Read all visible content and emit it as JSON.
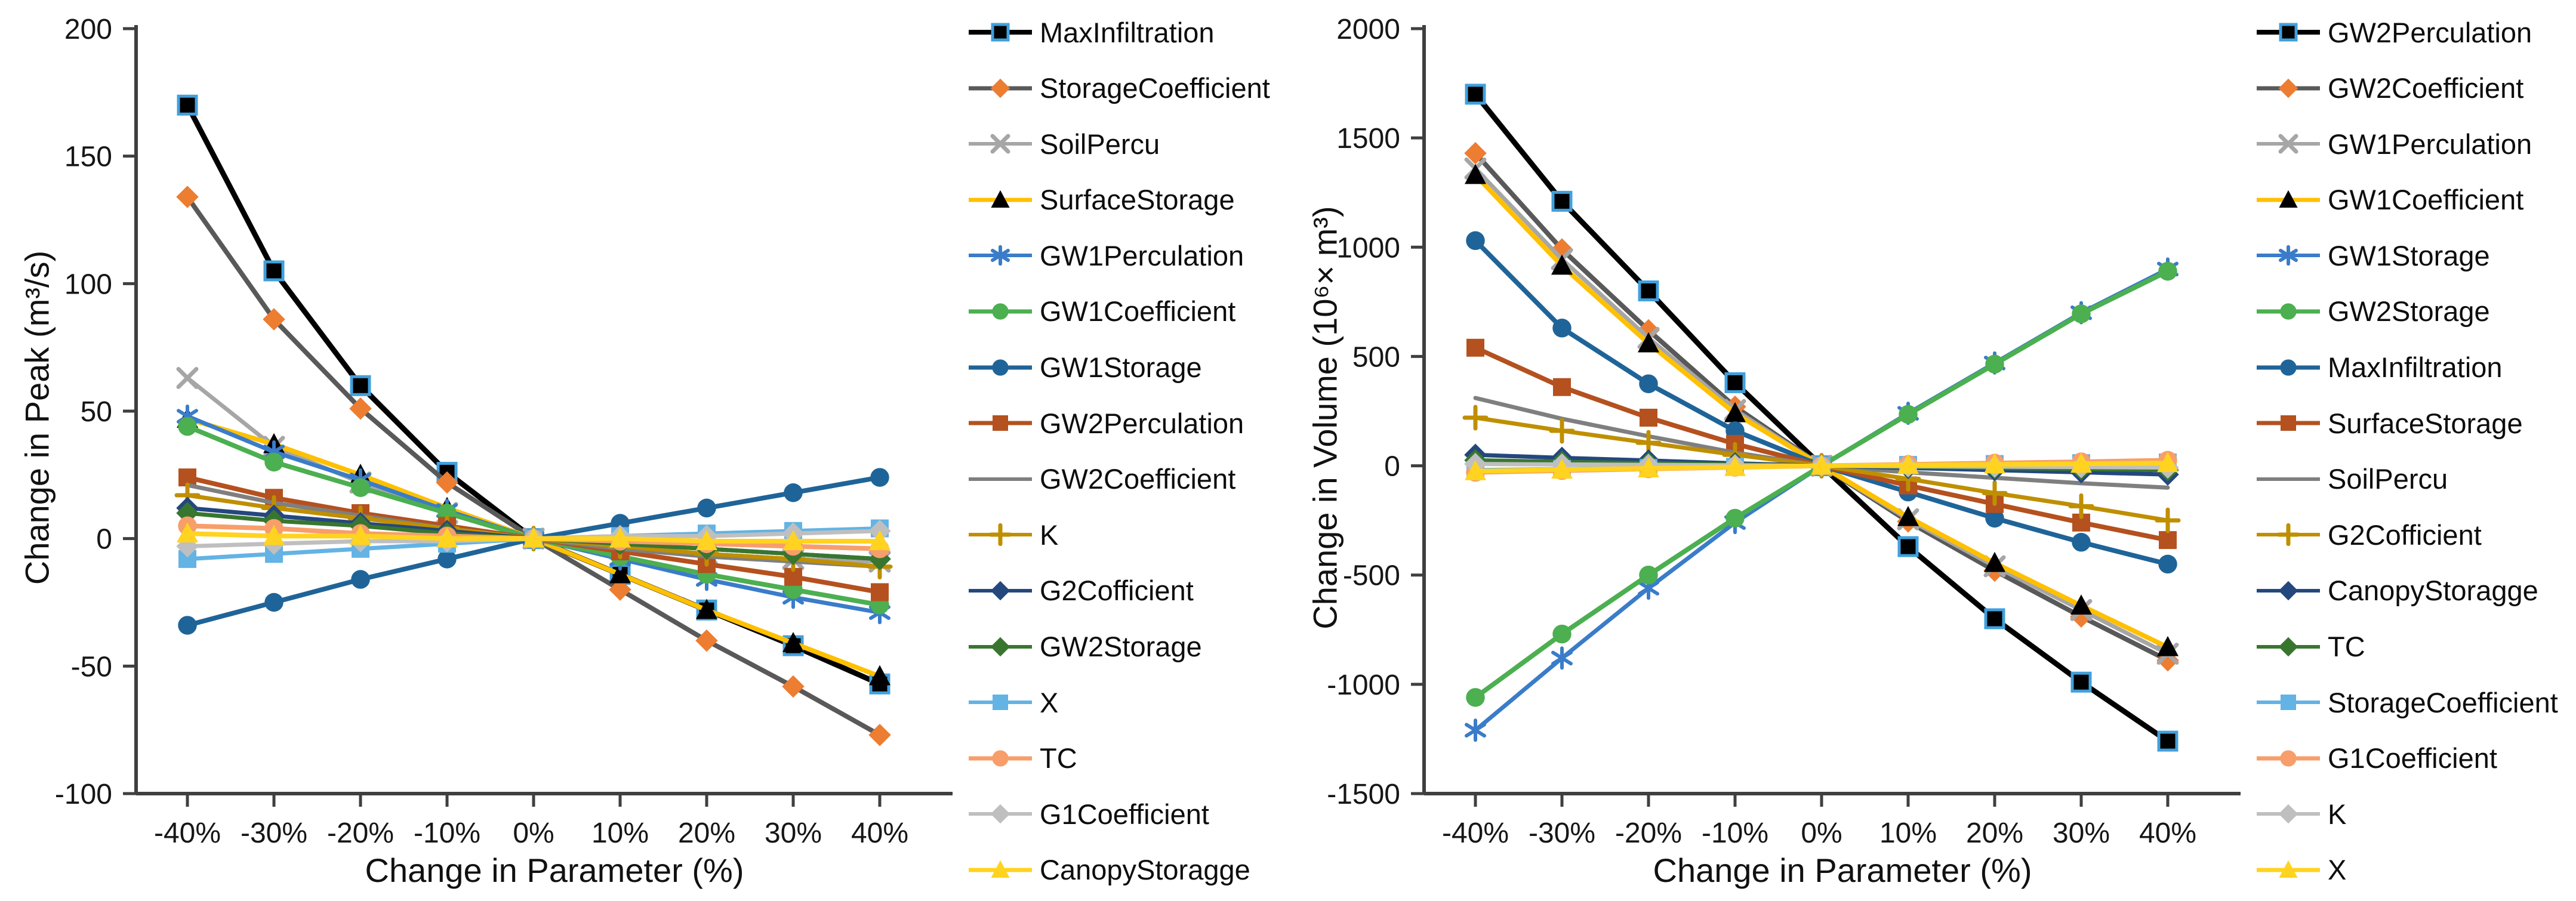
{
  "figure_title": "",
  "x_axis": {
    "title": "Change in Parameter (%)",
    "categories": [
      "-40%",
      "-30%",
      "-20%",
      "-10%",
      "0%",
      "10%",
      "20%",
      "30%",
      "40%"
    ]
  },
  "chart_data": [
    {
      "type": "line",
      "title": "",
      "xlabel": "Change in Parameter (%)",
      "ylabel": "Change in Peak (m³/s)",
      "ylim": [
        -100,
        200
      ],
      "ytick_step": 50,
      "ytick_labels": [
        "200",
        "150",
        "100",
        "50",
        "0",
        "-50",
        "-100"
      ],
      "grid": false,
      "legend_position": "right",
      "categories": [
        "-40%",
        "-30%",
        "-20%",
        "-10%",
        "0%",
        "10%",
        "20%",
        "30%",
        "40%"
      ],
      "series": [
        {
          "name": "MaxInfiltration",
          "color": "#000000",
          "marker": "square",
          "marker_color": "#000000",
          "marker_edge": "#41A0DC",
          "width": 9,
          "values": [
            170,
            105,
            60,
            26,
            0,
            -14,
            -28,
            -42,
            -57
          ]
        },
        {
          "name": "StorageCoefficient",
          "color": "#595959",
          "marker": "diamond",
          "marker_color": "#ED7D31",
          "marker_edge": "none",
          "width": 8,
          "values": [
            134,
            86,
            51,
            22,
            0,
            -20,
            -40,
            -58,
            -77
          ]
        },
        {
          "name": "SoilPercu",
          "color": "#A6A6A6",
          "marker": "x",
          "marker_color": "#A6A6A6",
          "marker_edge": "none",
          "width": 7,
          "values": [
            63,
            36,
            22,
            10,
            0,
            -4,
            -6,
            -8,
            -9
          ]
        },
        {
          "name": "SurfaceStorage",
          "color": "#FFC000",
          "marker": "triangle",
          "marker_color": "#000000",
          "marker_edge": "none",
          "width": 8,
          "values": [
            47,
            37,
            25,
            12,
            0,
            -14,
            -28,
            -41,
            -54
          ]
        },
        {
          "name": "GW1Perculation",
          "color": "#3A7CC9",
          "marker": "asterisk",
          "marker_color": "#3A7CC9",
          "marker_edge": "none",
          "width": 7,
          "values": [
            48,
            34,
            23,
            11,
            0,
            -8,
            -16,
            -23,
            -29
          ]
        },
        {
          "name": "GW1Coefficient",
          "color": "#4CAF50",
          "marker": "circle",
          "marker_color": "#4CAF50",
          "marker_edge": "none",
          "width": 8,
          "values": [
            44,
            30,
            20,
            10,
            0,
            -7,
            -14,
            -20,
            -26
          ]
        },
        {
          "name": "GW1Storage",
          "color": "#1F6498",
          "marker": "circle",
          "marker_color": "#1F6498",
          "marker_edge": "none",
          "width": 8,
          "values": [
            -34,
            -25,
            -16,
            -8,
            0,
            6,
            12,
            18,
            24
          ]
        },
        {
          "name": "GW2Perculation",
          "color": "#B4511F",
          "marker": "square",
          "marker_color": "#B4511F",
          "marker_edge": "none",
          "width": 8,
          "values": [
            24,
            16,
            10,
            5,
            0,
            -5,
            -10,
            -15,
            -21
          ]
        },
        {
          "name": "GW2Coefficient",
          "color": "#7F7F7F",
          "marker": "none",
          "marker_color": "#7F7F7F",
          "marker_edge": "none",
          "width": 7,
          "values": [
            21,
            14,
            9,
            4,
            0,
            -4,
            -7,
            -9,
            -11
          ]
        },
        {
          "name": "K",
          "color": "#BF8F00",
          "marker": "plus",
          "marker_color": "#BF8F00",
          "marker_edge": "none",
          "width": 7,
          "values": [
            17,
            12,
            8,
            4,
            0,
            -3,
            -6,
            -8,
            -11
          ]
        },
        {
          "name": "G2Cofficient",
          "color": "#24477E",
          "marker": "diamond",
          "marker_color": "#24477E",
          "marker_edge": "none",
          "width": 7,
          "values": [
            12,
            9,
            6,
            3,
            0,
            -2,
            -4,
            -6,
            -8
          ]
        },
        {
          "name": "GW2Storage",
          "color": "#38762F",
          "marker": "diamond",
          "marker_color": "#38762F",
          "marker_edge": "none",
          "width": 7,
          "values": [
            10,
            7,
            5,
            2,
            0,
            -2,
            -4,
            -6,
            -8
          ]
        },
        {
          "name": "X",
          "color": "#63B3E4",
          "marker": "square",
          "marker_color": "#63B3E4",
          "marker_edge": "none",
          "width": 7,
          "values": [
            -8,
            -6,
            -4,
            -2,
            0,
            1,
            2,
            3,
            4
          ]
        },
        {
          "name": "TC",
          "color": "#F89E6B",
          "marker": "circle",
          "marker_color": "#F89E6B",
          "marker_edge": "none",
          "width": 8,
          "values": [
            5,
            4,
            2,
            1,
            0,
            -1,
            -2,
            -3,
            -4
          ]
        },
        {
          "name": "G1Coefficient",
          "color": "#BFBFBF",
          "marker": "diamond",
          "marker_color": "#BFBFBF",
          "marker_edge": "none",
          "width": 7,
          "values": [
            -3,
            -2,
            -1,
            -1,
            0,
            1,
            1,
            2,
            3
          ]
        },
        {
          "name": "CanopyStoragge",
          "color": "#FFD320",
          "marker": "triangle",
          "marker_color": "#FFD320",
          "marker_edge": "none",
          "width": 8,
          "values": [
            2,
            1,
            1,
            0,
            0,
            0,
            -1,
            -1,
            -1
          ]
        }
      ]
    },
    {
      "type": "line",
      "title": "",
      "xlabel": "Change in Parameter (%)",
      "ylabel": "Change in Volume (10⁶× m³)",
      "ylim": [
        -1500,
        2000
      ],
      "ytick_step": 500,
      "ytick_labels": [
        "2000",
        "1500",
        "1000",
        "500",
        "0",
        "-500",
        "-1000",
        "-1500"
      ],
      "grid": false,
      "legend_position": "right",
      "categories": [
        "-40%",
        "-30%",
        "-20%",
        "-10%",
        "0%",
        "10%",
        "20%",
        "30%",
        "40%"
      ],
      "series": [
        {
          "name": "GW2Perculation",
          "color": "#000000",
          "marker": "square",
          "marker_color": "#000000",
          "marker_edge": "#41A0DC",
          "width": 9,
          "values": [
            1700,
            1210,
            800,
            380,
            0,
            -370,
            -700,
            -990,
            -1260
          ]
        },
        {
          "name": "GW2Coefficient",
          "color": "#595959",
          "marker": "diamond",
          "marker_color": "#ED7D31",
          "marker_edge": "none",
          "width": 8,
          "values": [
            1430,
            990,
            620,
            270,
            0,
            -255,
            -480,
            -690,
            -890
          ]
        },
        {
          "name": "GW1Perculation",
          "color": "#A6A6A6",
          "marker": "x",
          "marker_color": "#A6A6A6",
          "marker_edge": "none",
          "width": 7,
          "values": [
            1360,
            945,
            585,
            255,
            0,
            -245,
            -460,
            -660,
            -860
          ]
        },
        {
          "name": "GW1Coefficient",
          "color": "#FFC000",
          "marker": "triangle",
          "marker_color": "#000000",
          "marker_edge": "none",
          "width": 8,
          "values": [
            1330,
            915,
            560,
            240,
            0,
            -235,
            -445,
            -640,
            -830
          ]
        },
        {
          "name": "GW1Storage",
          "color": "#3A7CC9",
          "marker": "asterisk",
          "marker_color": "#3A7CC9",
          "marker_edge": "none",
          "width": 7,
          "values": [
            -1210,
            -880,
            -560,
            -260,
            0,
            240,
            470,
            700,
            900
          ]
        },
        {
          "name": "GW2Storage",
          "color": "#4CAF50",
          "marker": "circle",
          "marker_color": "#4CAF50",
          "marker_edge": "none",
          "width": 8,
          "values": [
            -1060,
            -770,
            -500,
            -240,
            0,
            235,
            465,
            695,
            890
          ]
        },
        {
          "name": "MaxInfiltration",
          "color": "#1F6498",
          "marker": "circle",
          "marker_color": "#1F6498",
          "marker_edge": "none",
          "width": 8,
          "values": [
            1030,
            630,
            375,
            160,
            0,
            -120,
            -240,
            -350,
            -450
          ]
        },
        {
          "name": "SurfaceStorage",
          "color": "#B4511F",
          "marker": "square",
          "marker_color": "#B4511F",
          "marker_edge": "none",
          "width": 8,
          "values": [
            540,
            360,
            220,
            100,
            0,
            -90,
            -175,
            -260,
            -340
          ]
        },
        {
          "name": "SoilPercu",
          "color": "#7F7F7F",
          "marker": "none",
          "marker_color": "#7F7F7F",
          "marker_edge": "none",
          "width": 7,
          "values": [
            310,
            215,
            135,
            60,
            0,
            -30,
            -55,
            -80,
            -100
          ]
        },
        {
          "name": "G2Cofficient",
          "color": "#BF8F00",
          "marker": "plus",
          "marker_color": "#BF8F00",
          "marker_edge": "none",
          "width": 7,
          "values": [
            220,
            160,
            105,
            50,
            0,
            -60,
            -125,
            -185,
            -250
          ]
        },
        {
          "name": "CanopyStoragge",
          "color": "#24477E",
          "marker": "diamond",
          "marker_color": "#24477E",
          "marker_edge": "none",
          "width": 7,
          "values": [
            50,
            36,
            24,
            11,
            0,
            -10,
            -20,
            -30,
            -40
          ]
        },
        {
          "name": "TC",
          "color": "#38762F",
          "marker": "diamond",
          "marker_color": "#38762F",
          "marker_edge": "none",
          "width": 7,
          "values": [
            25,
            18,
            12,
            6,
            0,
            -5,
            -10,
            -15,
            -20
          ]
        },
        {
          "name": "StorageCoefficient",
          "color": "#63B3E4",
          "marker": "square",
          "marker_color": "#63B3E4",
          "marker_edge": "none",
          "width": 7,
          "values": [
            -20,
            -15,
            -10,
            -5,
            0,
            4,
            8,
            12,
            15
          ]
        },
        {
          "name": "G1Coefficient",
          "color": "#F89E6B",
          "marker": "circle",
          "marker_color": "#F89E6B",
          "marker_edge": "none",
          "width": 8,
          "values": [
            -30,
            -22,
            -14,
            -7,
            0,
            6,
            12,
            18,
            25
          ]
        },
        {
          "name": "K",
          "color": "#BFBFBF",
          "marker": "diamond",
          "marker_color": "#BFBFBF",
          "marker_edge": "none",
          "width": 7,
          "values": [
            8,
            6,
            4,
            2,
            0,
            -2,
            -4,
            -6,
            -8
          ]
        },
        {
          "name": "X",
          "color": "#FFD320",
          "marker": "triangle",
          "marker_color": "#FFD320",
          "marker_edge": "none",
          "width": 8,
          "values": [
            -25,
            -18,
            -12,
            -6,
            0,
            3,
            6,
            9,
            12
          ]
        }
      ]
    }
  ]
}
